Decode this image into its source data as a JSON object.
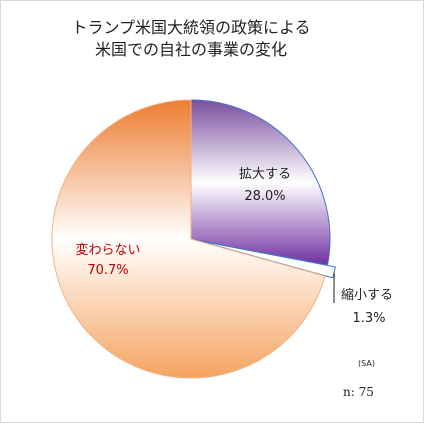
{
  "chart_data": {
    "type": "pie",
    "title": [
      "トランプ米国大統領の政策による",
      "米国での自社の事業の変化"
    ],
    "slices": [
      {
        "label": "拡大する",
        "value": 28.0,
        "value_label": "28.0%",
        "color": "#7030A0"
      },
      {
        "label": "縮小する",
        "value": 1.3,
        "value_label": "1.3%",
        "color": "#4472C4"
      },
      {
        "label": "変わらない",
        "value": 70.7,
        "value_label": "70.7%",
        "color": "#ED7D31"
      }
    ],
    "start_angle": "12 o'clock",
    "direction": "clockwise",
    "legend": "none",
    "notes": {
      "sa": "(SA)",
      "n": "n: 75"
    }
  }
}
